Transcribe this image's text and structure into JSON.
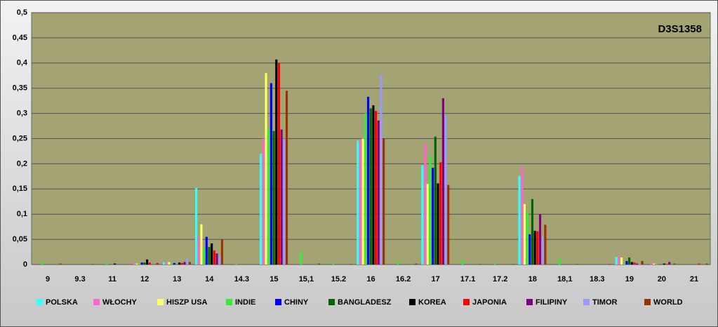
{
  "chart_data": {
    "type": "bar",
    "title": "D3S1358",
    "categories": [
      "9",
      "9.3",
      "11",
      "12",
      "13",
      "14",
      "14.3",
      "15",
      "15,1",
      "15.2",
      "16",
      "16.2",
      "17",
      "17.1",
      "17.2",
      "18",
      "18,1",
      "18.3",
      "19",
      "20",
      "21"
    ],
    "ylim": [
      0,
      0.5
    ],
    "yticks": [
      0,
      {
        "value": 0.05,
        "label": "0,05"
      },
      {
        "value": 0.1,
        "label": "0,1"
      },
      {
        "value": 0.15,
        "label": "0,15"
      },
      {
        "value": 0.2,
        "label": "0,2"
      },
      {
        "value": 0.25,
        "label": "0,25"
      },
      {
        "value": 0.3,
        "label": "0,3"
      },
      {
        "value": 0.35,
        "label": "0,35"
      },
      {
        "value": 0.4,
        "label": "0,4"
      },
      {
        "value": 0.45,
        "label": "0,45"
      },
      {
        "value": 0.5,
        "label": "0,5"
      }
    ],
    "grid": true,
    "legend": "bottom",
    "series": [
      {
        "name": "POLSKA",
        "color": "#33ffff",
        "values": [
          0,
          0,
          0,
          0,
          0.005,
          0.152,
          0,
          0.22,
          0,
          0,
          0.246,
          0,
          0.197,
          0,
          0,
          0.176,
          0,
          0,
          0.015,
          0,
          0
        ]
      },
      {
        "name": "WŁOCHY",
        "color": "#ff66cc",
        "values": [
          0,
          0,
          0,
          0.003,
          0.005,
          0.055,
          0,
          0.25,
          0,
          0,
          0.248,
          0,
          0.24,
          0,
          0,
          0.194,
          0,
          0,
          0.016,
          0.004,
          0
        ]
      },
      {
        "name": "HISZP USA",
        "color": "#ffff66",
        "values": [
          0,
          0,
          0,
          0.002,
          0.005,
          0.08,
          0,
          0.38,
          0,
          0,
          0.25,
          0,
          0.16,
          0,
          0,
          0.12,
          0,
          0,
          0.014,
          0.002,
          0
        ]
      },
      {
        "name": "INDIE",
        "color": "#33ee33",
        "values": [
          0.005,
          0,
          0.003,
          0.002,
          0.002,
          0.033,
          0.001,
          0.27,
          0.026,
          0.002,
          0.3,
          0.005,
          0.215,
          0.009,
          0.002,
          0.105,
          0.012,
          0,
          0.003,
          0.001,
          0
        ]
      },
      {
        "name": "CHINY",
        "color": "#0000ff",
        "values": [
          0,
          0,
          0,
          0.004,
          0.003,
          0.055,
          0,
          0.36,
          0,
          0,
          0.333,
          0,
          0.192,
          0,
          0,
          0.06,
          0,
          0,
          0.007,
          0,
          0
        ]
      },
      {
        "name": "BANGLADESZ",
        "color": "#006600",
        "values": [
          0,
          0,
          0,
          0.004,
          0,
          0.035,
          0,
          0.265,
          0,
          0,
          0.31,
          0,
          0.254,
          0,
          0,
          0.13,
          0,
          0,
          0.014,
          0,
          0
        ]
      },
      {
        "name": "KOREA",
        "color": "#000000",
        "values": [
          0,
          0,
          0.002,
          0.01,
          0.004,
          0.042,
          0,
          0.407,
          0,
          0,
          0.316,
          0,
          0.161,
          0,
          0,
          0.067,
          0,
          0,
          0.005,
          0.002,
          0
        ]
      },
      {
        "name": "JAPONIA",
        "color": "#ff0000",
        "values": [
          0,
          0,
          0,
          0.004,
          0.003,
          0.028,
          0,
          0.4,
          0,
          0,
          0.305,
          0,
          0.203,
          0,
          0,
          0.066,
          0,
          0,
          0.004,
          0.001,
          0.002
        ]
      },
      {
        "name": "FILIPINY",
        "color": "#800080",
        "values": [
          0,
          0,
          0,
          0,
          0.005,
          0.022,
          0,
          0.268,
          0,
          0,
          0.286,
          0,
          0.33,
          0,
          0,
          0.1,
          0,
          0,
          0.002,
          0.005,
          0
        ]
      },
      {
        "name": "TIMOR",
        "color": "#9999ff",
        "values": [
          0,
          0,
          0,
          0,
          0.012,
          0.017,
          0,
          0.25,
          0,
          0,
          0.377,
          0,
          0.296,
          0,
          0,
          0.053,
          0,
          0,
          0.002,
          0,
          0
        ]
      },
      {
        "name": "WORLD",
        "color": "#993300",
        "values": [
          0.002,
          0.001,
          0,
          0.003,
          0.005,
          0.05,
          0,
          0.345,
          0.002,
          0.001,
          0.25,
          0.002,
          0.158,
          0.001,
          0.001,
          0.079,
          0.001,
          0.001,
          0.007,
          0.002,
          0.002
        ]
      }
    ]
  }
}
